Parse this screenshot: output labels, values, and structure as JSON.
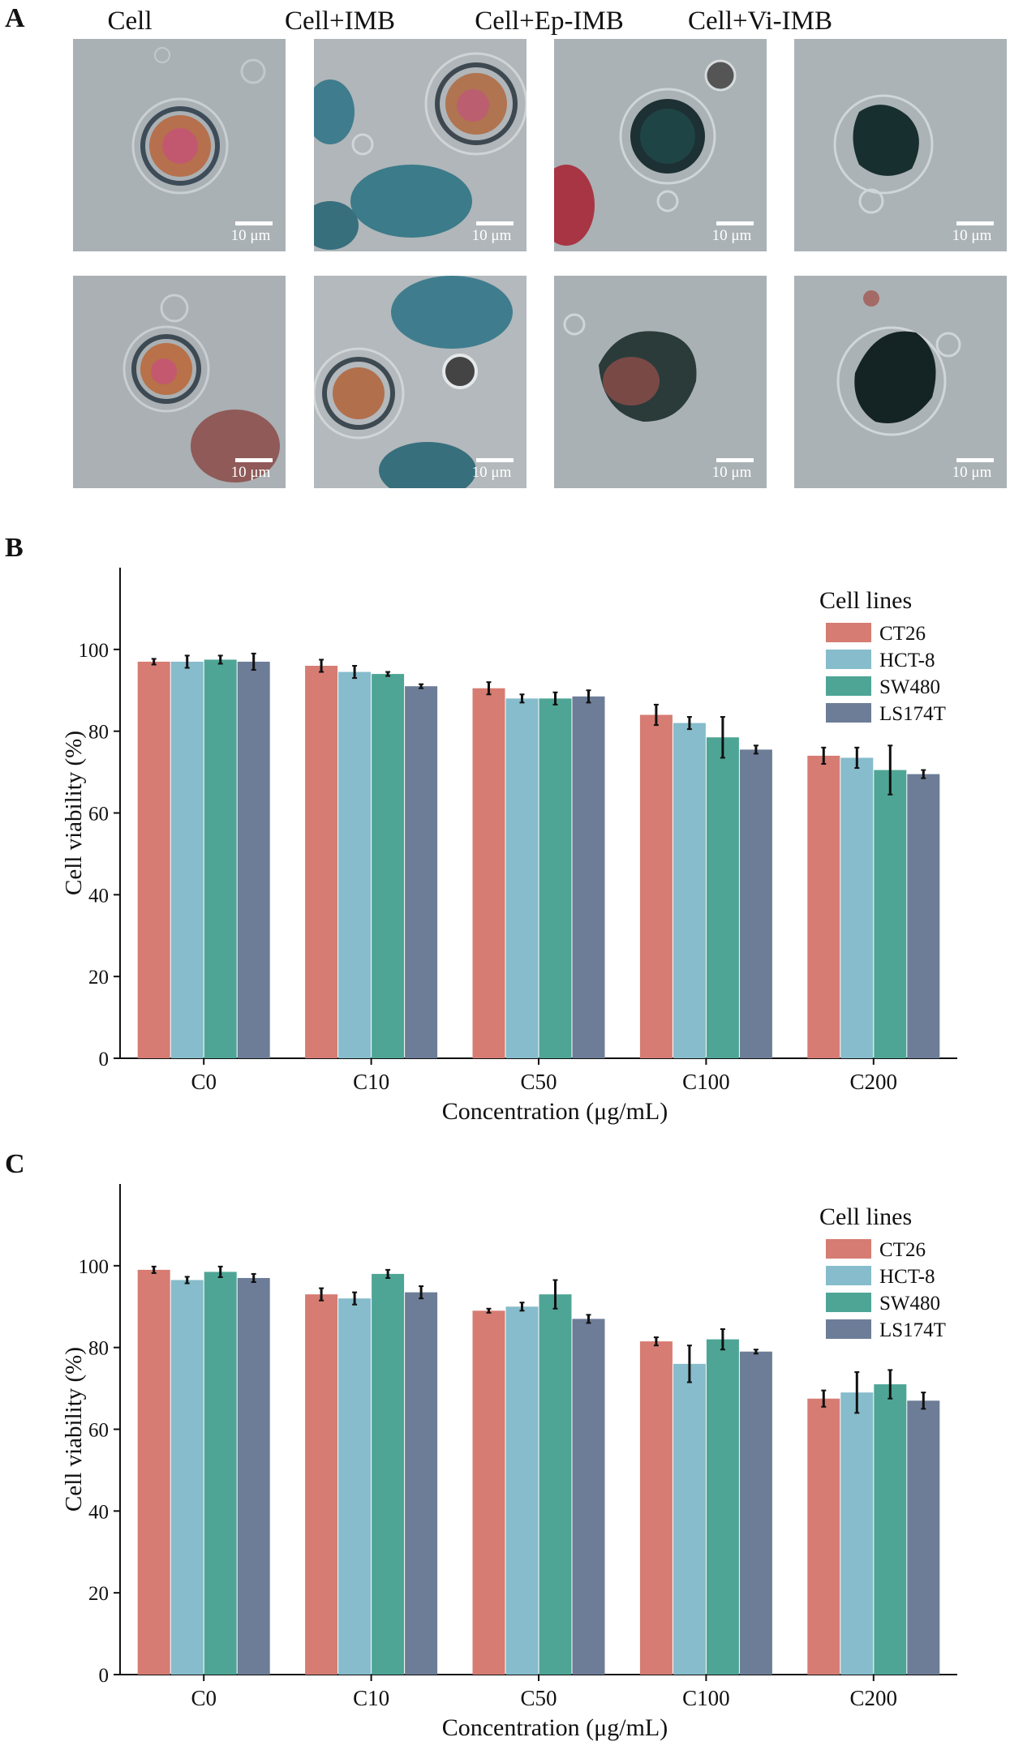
{
  "panel_a": {
    "letter": "A",
    "columns": [
      "Cell",
      "Cell+IMB",
      "Cell+Ep-IMB",
      "Cell+Vi-IMB"
    ],
    "scale_label": "10 μm"
  },
  "colors": {
    "CT26": "#d67c73",
    "HCT-8": "#86bccb",
    "SW480": "#4ea595",
    "LS174T": "#6d7d98"
  },
  "chart_data": [
    {
      "panel": "B",
      "type": "bar",
      "title": "",
      "categories": [
        "C0",
        "C10",
        "C50",
        "C100",
        "C200"
      ],
      "xlabel": "Concentration (μg/mL)",
      "ylabel": "Cell viability (%)",
      "ylim": [
        0,
        120
      ],
      "yticks": [
        0,
        20,
        40,
        60,
        80,
        100
      ],
      "legend_title": "Cell lines",
      "legend_position": "top-right",
      "series": [
        {
          "name": "CT26",
          "values": [
            97,
            96,
            90.5,
            84,
            74
          ],
          "errors": [
            0.7,
            1.5,
            1.5,
            2.5,
            2
          ]
        },
        {
          "name": "HCT-8",
          "values": [
            97,
            94.5,
            88,
            82,
            73.5
          ],
          "errors": [
            1.5,
            1.5,
            1,
            1.5,
            2.5
          ]
        },
        {
          "name": "SW480",
          "values": [
            97.5,
            94,
            88,
            78.5,
            70.5
          ],
          "errors": [
            1,
            0.5,
            1.5,
            5,
            6
          ]
        },
        {
          "name": "LS174T",
          "values": [
            97,
            91,
            88.5,
            75.5,
            69.5
          ],
          "errors": [
            2,
            0.5,
            1.5,
            1,
            1
          ]
        }
      ]
    },
    {
      "panel": "C",
      "type": "bar",
      "title": "",
      "categories": [
        "C0",
        "C10",
        "C50",
        "C100",
        "C200"
      ],
      "xlabel": "Concentration (μg/mL)",
      "ylabel": "Cell viability (%)",
      "ylim": [
        0,
        120
      ],
      "yticks": [
        0,
        20,
        40,
        60,
        80,
        100
      ],
      "legend_title": "Cell lines",
      "legend_position": "top-right",
      "series": [
        {
          "name": "CT26",
          "values": [
            99,
            93,
            89,
            81.5,
            67.5
          ],
          "errors": [
            0.8,
            1.5,
            0.5,
            1,
            2
          ]
        },
        {
          "name": "HCT-8",
          "values": [
            96.5,
            92,
            90,
            76,
            69
          ],
          "errors": [
            0.8,
            1.5,
            1,
            4.5,
            5
          ]
        },
        {
          "name": "SW480",
          "values": [
            98.5,
            98,
            93,
            82,
            71
          ],
          "errors": [
            1.3,
            1,
            3.5,
            2.5,
            3.5
          ]
        },
        {
          "name": "LS174T",
          "values": [
            97,
            93.5,
            87,
            79,
            67
          ],
          "errors": [
            1,
            1.5,
            1,
            0.5,
            2
          ]
        }
      ]
    }
  ]
}
